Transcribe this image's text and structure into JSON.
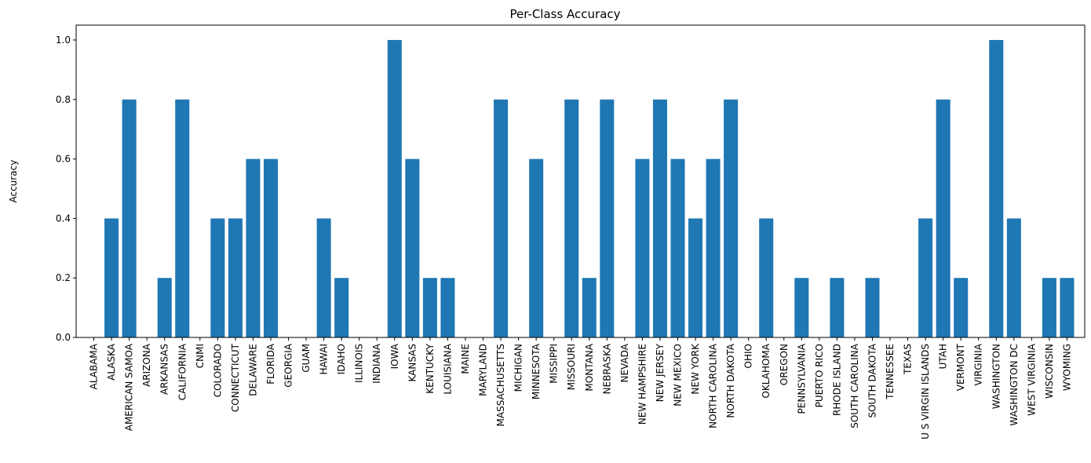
{
  "chart_data": {
    "type": "bar",
    "title": "Per-Class Accuracy",
    "xlabel": "",
    "ylabel": "Accuracy",
    "ylim": [
      0,
      1.05
    ],
    "yticks": [
      "0.0",
      "0.2",
      "0.4",
      "0.6",
      "0.8",
      "1.0"
    ],
    "bar_color": "#1f77b4",
    "grid": false,
    "categories": [
      "ALABAMA",
      "ALASKA",
      "AMERICAN SAMOA",
      "ARIZONA",
      "ARKANSAS",
      "CALIFORNIA",
      "CNMI",
      "COLORADO",
      "CONNECTICUT",
      "DELAWARE",
      "FLORIDA",
      "GEORGIA",
      "GUAM",
      "HAWAI",
      "IDAHO",
      "ILLINOIS",
      "INDIANA",
      "IOWA",
      "KANSAS",
      "KENTUCKY",
      "LOUISIANA",
      "MAINE",
      "MARYLAND",
      "MASSACHUSETTS",
      "MICHIGAN",
      "MINNESOTA",
      "MISSIPPI",
      "MISSOURI",
      "MONTANA",
      "NEBRASKA",
      "NEVADA",
      "NEW HAMPSHIRE",
      "NEW JERSEY",
      "NEW MEXICO",
      "NEW YORK",
      "NORTH CAROLINA",
      "NORTH DAKOTA",
      "OHIO",
      "OKLAHOMA",
      "OREGON",
      "PENNSYLVANIA",
      "PUERTO RICO",
      "RHODE ISLAND",
      "SOUTH CAROLINA",
      "SOUTH DAKOTA",
      "TENNESSEE",
      "TEXAS",
      "U S VIRGIN ISLANDS",
      "UTAH",
      "VERMONT",
      "VIRGINIA",
      "WASHINGTON",
      "WASHINGTON DC",
      "WEST VIRGINIA",
      "WISCONSIN",
      "WYOMING"
    ],
    "values": [
      0.0,
      0.4,
      0.8,
      0.0,
      0.2,
      0.8,
      0.0,
      0.4,
      0.4,
      0.6,
      0.6,
      0.0,
      0.0,
      0.4,
      0.2,
      0.0,
      0.0,
      1.0,
      0.6,
      0.2,
      0.2,
      0.0,
      0.0,
      0.8,
      0.0,
      0.6,
      0.0,
      0.8,
      0.2,
      0.8,
      0.0,
      0.6,
      0.8,
      0.6,
      0.4,
      0.6,
      0.8,
      0.0,
      0.4,
      0.0,
      0.2,
      0.0,
      0.2,
      0.0,
      0.2,
      0.0,
      0.0,
      0.4,
      0.8,
      0.2,
      0.0,
      1.0,
      0.4,
      0.0,
      0.2,
      0.2
    ]
  }
}
